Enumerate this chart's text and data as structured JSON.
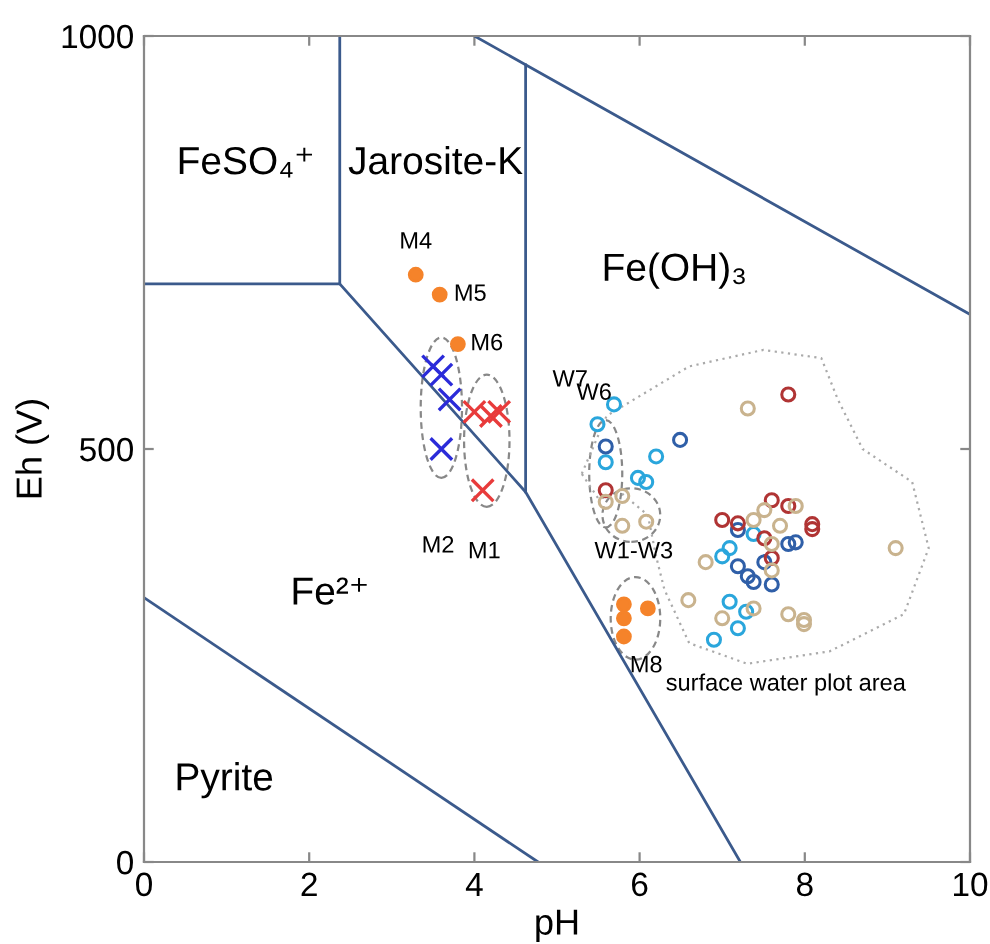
{
  "chart_data": {
    "type": "scatter",
    "xlabel": "pH",
    "ylabel": "Eh (V)",
    "xlim": [
      0,
      10
    ],
    "ylim": [
      0,
      1000
    ],
    "xticks": [
      0,
      2,
      4,
      6,
      8,
      10
    ],
    "yticks": [
      0,
      500,
      1000
    ],
    "grid": false,
    "series": [
      {
        "type": "line",
        "color": "#3b5a8c",
        "x": [
          0,
          2.37,
          2.37
        ],
        "values": [
          700,
          700,
          1000
        ]
      },
      {
        "type": "line",
        "color": "#3b5a8c",
        "x": [
          2.37,
          4.62,
          7.22
        ],
        "values": [
          700,
          448,
          0
        ]
      },
      {
        "type": "line",
        "color": "#3b5a8c",
        "x": [
          4.62,
          4.62
        ],
        "values": [
          448,
          965
        ]
      },
      {
        "type": "line",
        "color": "#3b5a8c",
        "x": [
          4.0,
          10
        ],
        "values": [
          1000,
          663
        ]
      },
      {
        "type": "line",
        "color": "#3b5a8c",
        "x": [
          0,
          4.77
        ],
        "values": [
          320,
          0
        ]
      },
      {
        "marker": "circle",
        "color": "#f5832a",
        "x": [
          3.29,
          3.58,
          3.8,
          5.81,
          5.81,
          5.81,
          6.1
        ],
        "values": [
          711,
          687,
          627,
          312,
          295,
          273,
          307
        ]
      },
      {
        "marker": "cross",
        "color": "#2b2bd9",
        "x": [
          3.5,
          3.6,
          3.7,
          3.6
        ],
        "values": [
          600,
          590,
          560,
          500
        ]
      },
      {
        "marker": "cross",
        "color": "#e83b3b",
        "x": [
          4.0,
          4.2,
          4.3,
          4.1
        ],
        "values": [
          545,
          540,
          545,
          450
        ]
      },
      {
        "marker": "open circle",
        "color": "#2aa6dc",
        "x": [
          5.69,
          5.49,
          5.59,
          6.2,
          5.98,
          6.08,
          7.38,
          7.0,
          7.09,
          7.09,
          7.29,
          7.19,
          6.9
        ],
        "values": [
          554,
          530,
          484,
          491,
          465,
          460,
          397,
          370,
          380,
          315,
          303,
          283,
          269
        ]
      },
      {
        "marker": "open circle",
        "color": "#2f5fa8",
        "x": [
          5.59,
          6.49,
          7.19,
          7.19,
          7.31,
          7.38,
          7.51,
          7.6,
          7.8,
          7.89
        ],
        "values": [
          503,
          511,
          402,
          358,
          346,
          339,
          363,
          336,
          385,
          387
        ]
      },
      {
        "marker": "open circle",
        "color": "#b03434",
        "x": [
          5.59,
          7.8,
          7.0,
          7.19,
          7.6,
          7.8,
          7.51,
          7.6,
          8.09,
          8.09
        ],
        "values": [
          450,
          566,
          414,
          410,
          438,
          431,
          392,
          368,
          409,
          403
        ]
      },
      {
        "marker": "open circle",
        "color": "#c9b38e",
        "x": [
          7.31,
          5.59,
          5.79,
          5.79,
          6.08,
          6.8,
          6.59,
          7.0,
          7.38,
          7.51,
          7.38,
          7.7,
          7.89,
          7.6,
          7.6,
          7.8,
          7.99,
          7.99,
          9.1
        ],
        "values": [
          549,
          436,
          443,
          407,
          412,
          363,
          317,
          295,
          307,
          426,
          414,
          407,
          431,
          385,
          353,
          300,
          293,
          288,
          380
        ]
      }
    ],
    "annotations": [
      "FeSO₄⁺",
      "Jarosite-K",
      "Fe(OH)₃",
      "Fe²⁺",
      "Pyrite",
      "M4",
      "M5",
      "M6",
      "M2",
      "M1",
      "W7",
      "W6",
      "W1-W3",
      "M8",
      "surface water plot area"
    ]
  }
}
